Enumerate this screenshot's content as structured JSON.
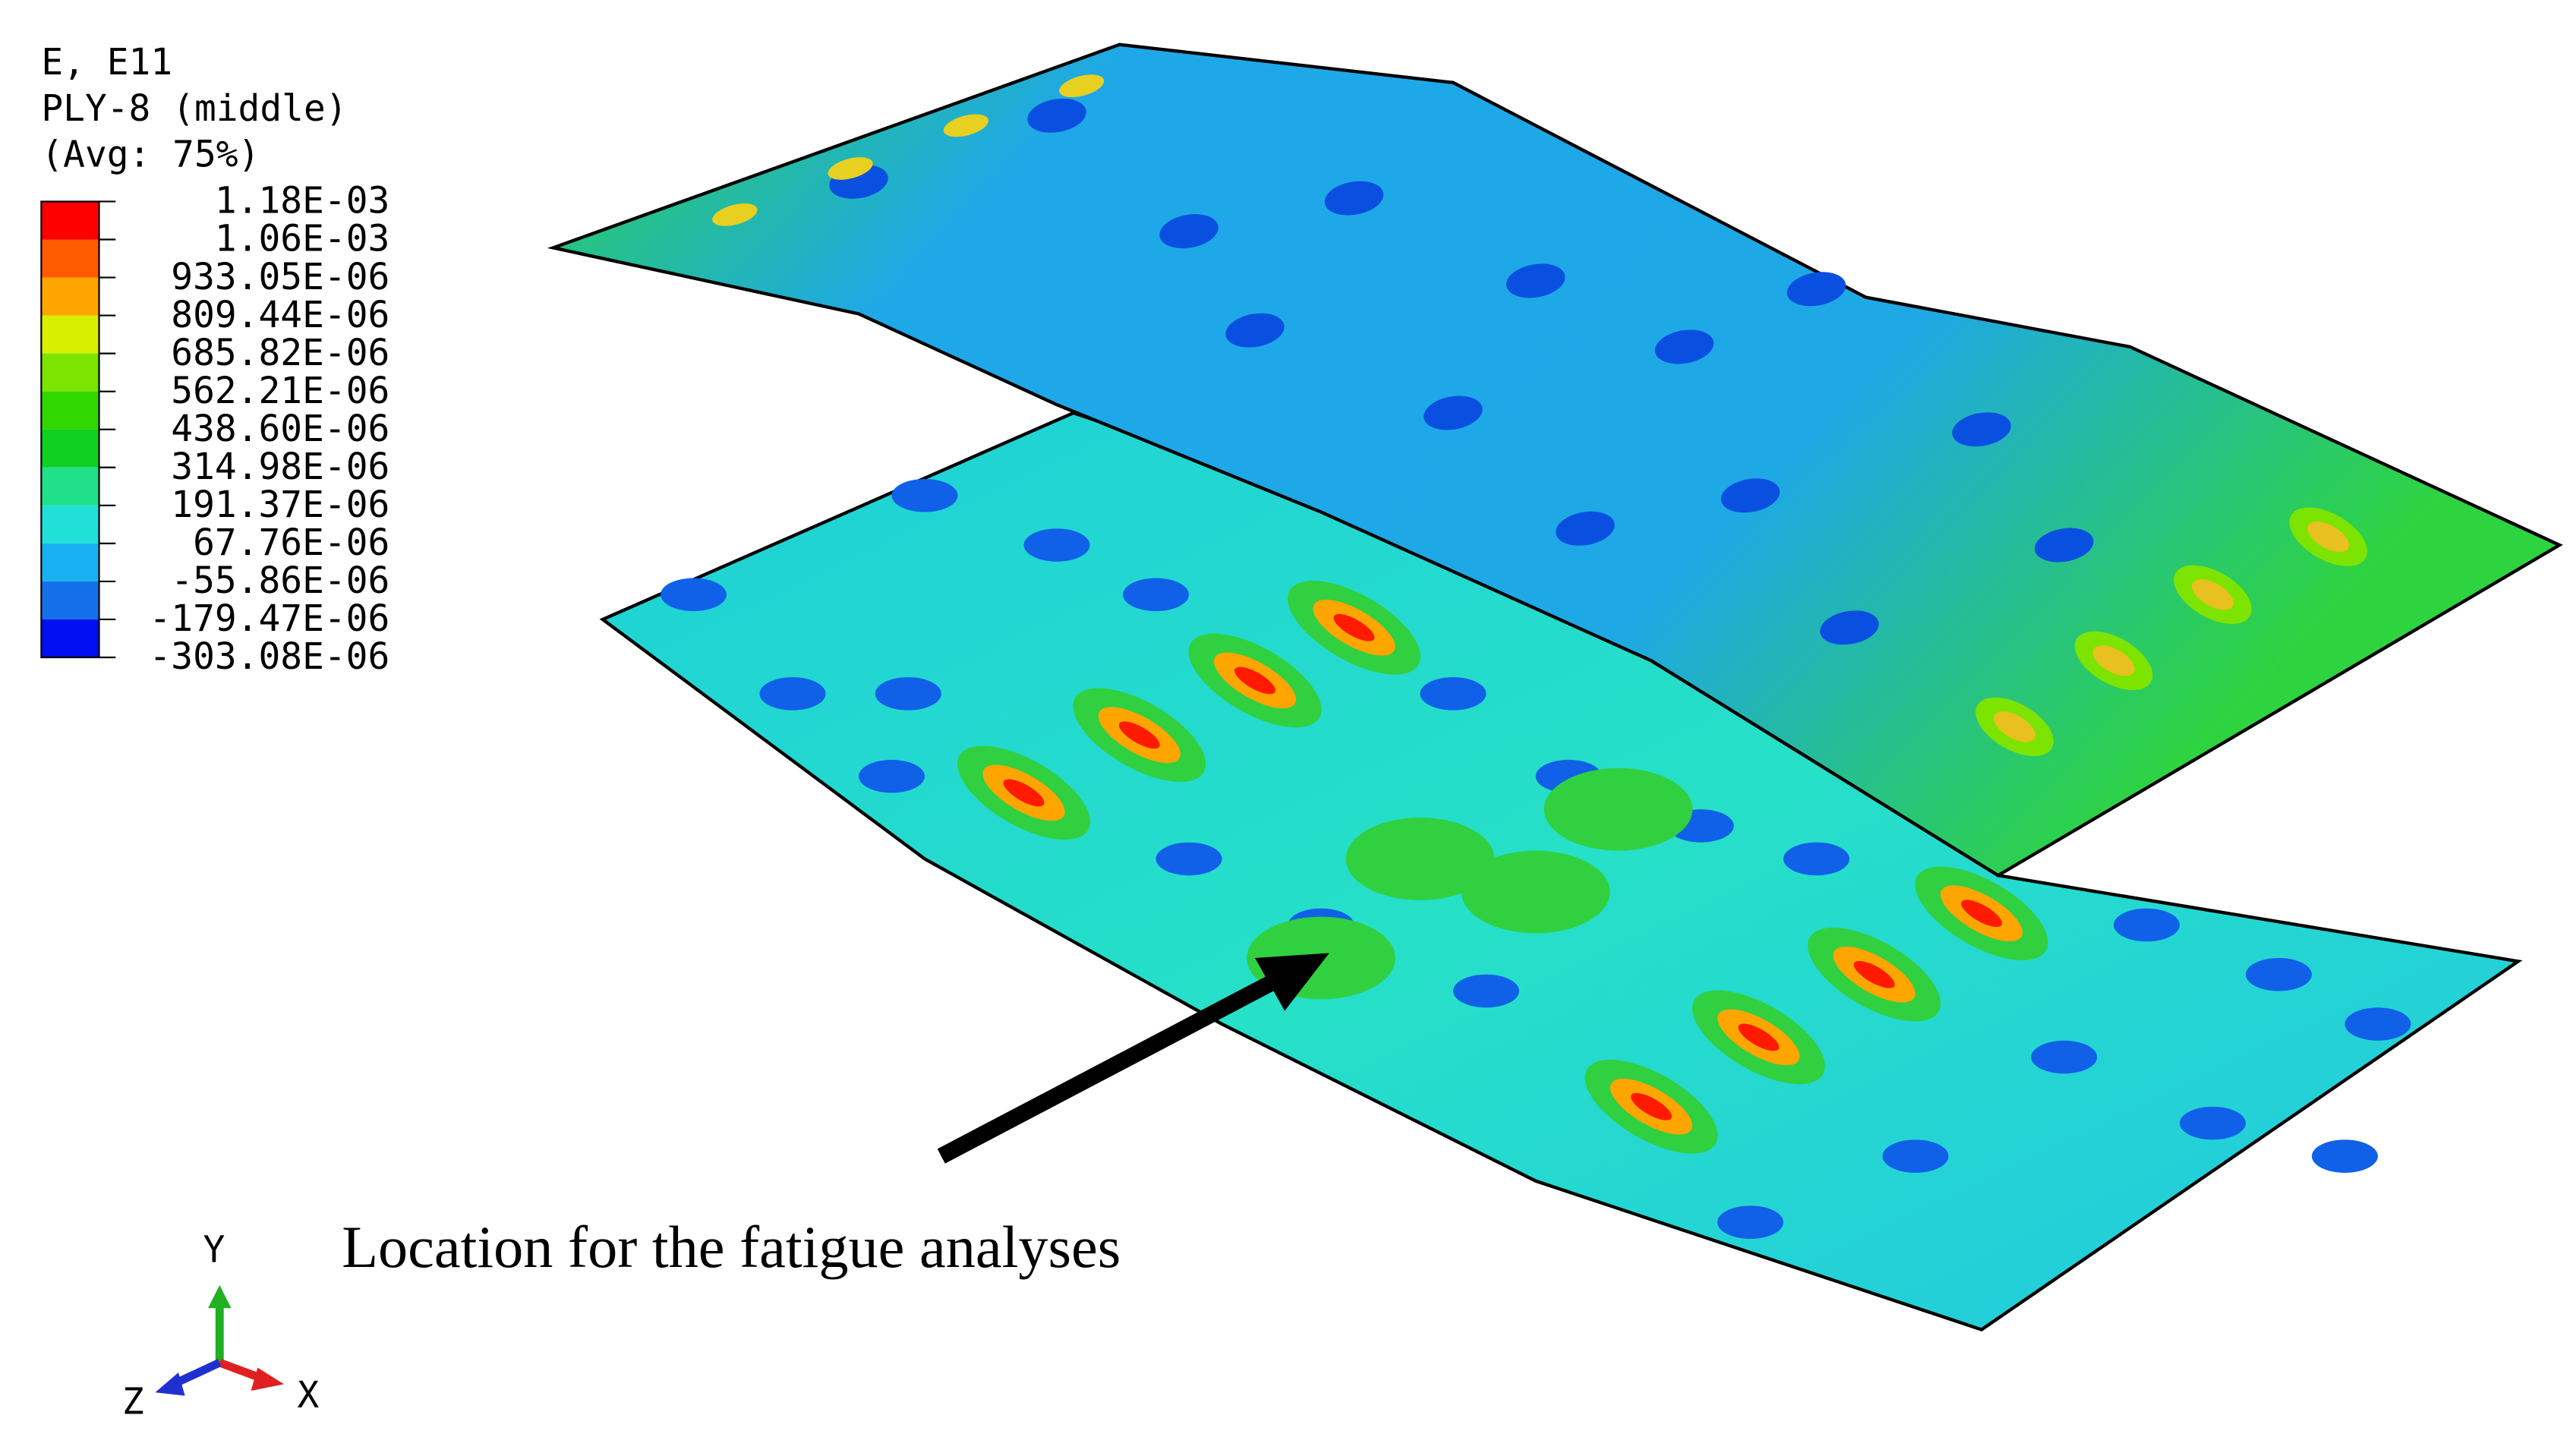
{
  "legend": {
    "title": [
      "E, E11",
      "PLY-8 (middle)",
      "(Avg: 75%)"
    ],
    "labels": [
      "1.18E-03",
      "1.06E-03",
      "933.05E-06",
      "809.44E-06",
      "685.82E-06",
      "562.21E-06",
      "438.60E-06",
      "314.98E-06",
      "191.37E-06",
      "67.76E-06",
      "-55.86E-06",
      "-179.47E-06",
      "-303.08E-06"
    ]
  },
  "annotation": "Location for the fatigue analyses",
  "triad": {
    "y": "Y",
    "x": "X",
    "z": "Z"
  }
}
